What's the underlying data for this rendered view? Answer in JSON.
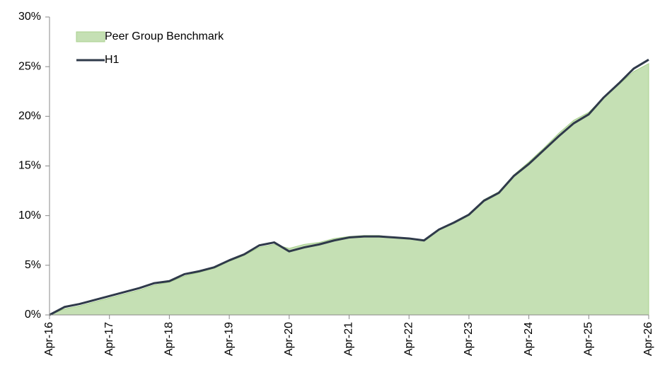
{
  "chart_data": {
    "type": "area-line",
    "categories": [
      "Apr-16",
      null,
      null,
      null,
      "Apr-17",
      null,
      null,
      null,
      "Apr-18",
      null,
      null,
      null,
      "Apr-19",
      null,
      null,
      null,
      "Apr-20",
      null,
      null,
      null,
      "Apr-21",
      null,
      null,
      null,
      "Apr-22",
      null,
      null,
      null,
      "Apr-23",
      null,
      null,
      null,
      "Apr-24",
      null,
      null,
      null,
      "Apr-25",
      null,
      null,
      null,
      "Apr-26"
    ],
    "series": [
      {
        "name": "Peer Group Benchmark",
        "kind": "area",
        "color": "#c5e0b4",
        "values": [
          0,
          0.6,
          0.9,
          1.3,
          1.7,
          2.1,
          2.5,
          3.0,
          3.3,
          3.9,
          4.3,
          4.7,
          5.4,
          6.0,
          6.8,
          7.1,
          6.7,
          7.1,
          7.3,
          7.7,
          7.9,
          8.0,
          8.0,
          7.8,
          7.7,
          7.5,
          8.6,
          9.3,
          10.1,
          11.6,
          12.4,
          14.1,
          15.4,
          16.8,
          18.3,
          19.6,
          20.4,
          21.9,
          23.2,
          24.5,
          25.3
        ]
      },
      {
        "name": "H1",
        "kind": "line",
        "color": "#2f3a4a",
        "values": [
          0,
          0.8,
          1.1,
          1.5,
          1.9,
          2.3,
          2.7,
          3.2,
          3.4,
          4.1,
          4.4,
          4.8,
          5.5,
          6.1,
          7.0,
          7.3,
          6.4,
          6.8,
          7.1,
          7.5,
          7.8,
          7.9,
          7.9,
          7.8,
          7.7,
          7.5,
          8.6,
          9.3,
          10.1,
          11.5,
          12.3,
          14.0,
          15.2,
          16.6,
          18.0,
          19.3,
          20.2,
          21.9,
          23.3,
          24.8,
          25.7
        ]
      }
    ],
    "ylim": [
      0,
      30
    ],
    "yticks": [
      {
        "value": 0,
        "label": "0%"
      },
      {
        "value": 5,
        "label": "5%"
      },
      {
        "value": 10,
        "label": "10%"
      },
      {
        "value": 15,
        "label": "15%"
      },
      {
        "value": 20,
        "label": "20%"
      },
      {
        "value": 25,
        "label": "25%"
      },
      {
        "value": 30,
        "label": "30%"
      }
    ],
    "legend": "top-left"
  }
}
